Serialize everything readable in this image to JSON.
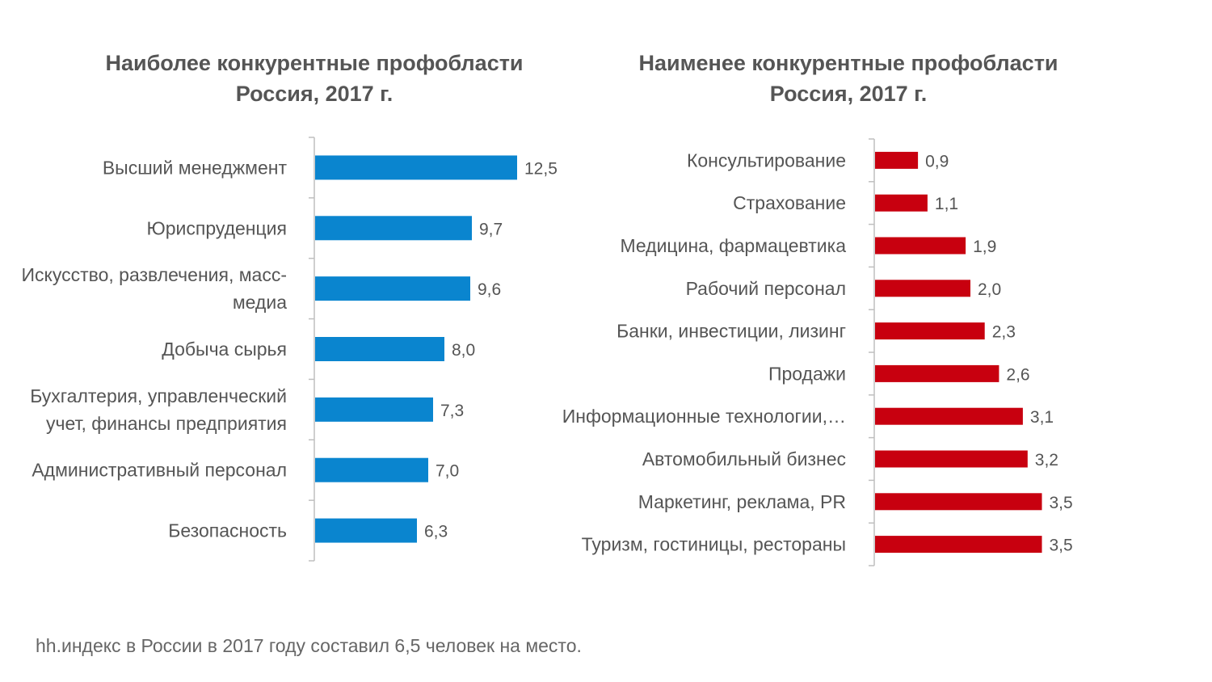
{
  "chart_data": [
    {
      "type": "bar",
      "orientation": "horizontal",
      "title": [
        "Наиболее конкурентные профобласти",
        "Россия, 2017 г."
      ],
      "categories": [
        [
          "Высший менеджмент"
        ],
        [
          "Юриспруденция"
        ],
        [
          "Искусство, развлечения, масс-",
          "медиа"
        ],
        [
          "Добыча сырья"
        ],
        [
          "Бухгалтерия, управленческий",
          "учет, финансы предприятия"
        ],
        [
          "Административный персонал"
        ],
        [
          "Безопасность"
        ]
      ],
      "values": [
        12.5,
        9.7,
        9.6,
        8.0,
        7.3,
        7.0,
        6.3
      ],
      "value_labels": [
        "12,5",
        "9,7",
        "9,6",
        "8,0",
        "7,3",
        "7,0",
        "6,3"
      ],
      "xlim": [
        0,
        16
      ],
      "color": "#0a85cf",
      "grid": false
    },
    {
      "type": "bar",
      "orientation": "horizontal",
      "title": [
        "Наименее конкурентные профобласти",
        "Россия, 2017 г."
      ],
      "categories": [
        [
          "Консультирование"
        ],
        [
          "Страхование"
        ],
        [
          "Медицина, фармацевтика"
        ],
        [
          "Рабочий персонал"
        ],
        [
          "Банки, инвестиции, лизинг"
        ],
        [
          "Продажи"
        ],
        [
          "Информационные технологии,…"
        ],
        [
          "Автомобильный бизнес"
        ],
        [
          "Маркетинг, реклама, PR"
        ],
        [
          "Туризм, гостиницы, рестораны"
        ]
      ],
      "values": [
        0.9,
        1.1,
        1.9,
        2.0,
        2.3,
        2.6,
        3.1,
        3.2,
        3.5,
        3.5
      ],
      "value_labels": [
        "0,9",
        "1,1",
        "1,9",
        "2,0",
        "2,3",
        "2,6",
        "3,1",
        "3,2",
        "3,5",
        "3,5"
      ],
      "xlim": [
        0,
        6
      ],
      "color": "#c8000f",
      "grid": false
    }
  ],
  "footnote": "hh.индекс в России в 2017 году составил 6,5 человек на место."
}
